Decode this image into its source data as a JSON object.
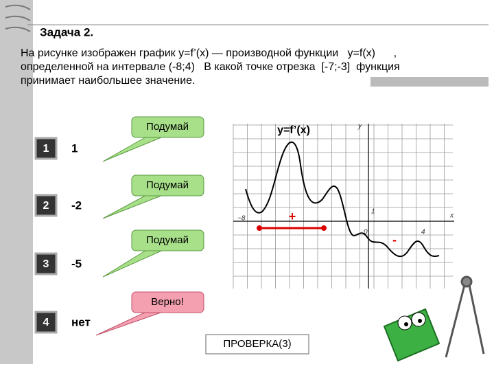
{
  "title": "Задача 2.",
  "problem": [
    "На рисунке изображен график y=f’(x) — производной функции   y=f(x)      ,",
    "определенной на интервале (-8;4)   В какой точке отрезка  [-7;-3]  функция",
    "принимает наибольшее значение."
  ],
  "options": [
    {
      "number": "1",
      "answer": "1",
      "feedback": "Подумай"
    },
    {
      "number": "2",
      "answer": "-2",
      "feedback": "Подумай"
    },
    {
      "number": "3",
      "answer": "-5",
      "feedback": "Подумай"
    },
    {
      "number": "4",
      "answer": "нет",
      "feedback": "Верно!"
    }
  ],
  "graph": {
    "label": "y=f’(x)",
    "axis_labels": {
      "y": "y",
      "x": "x",
      "left": "−8",
      "one": "1",
      "zero": "0",
      "four": "4"
    },
    "plus": "+",
    "minus": "-"
  },
  "button": "ПРОВЕРКА(3)"
}
